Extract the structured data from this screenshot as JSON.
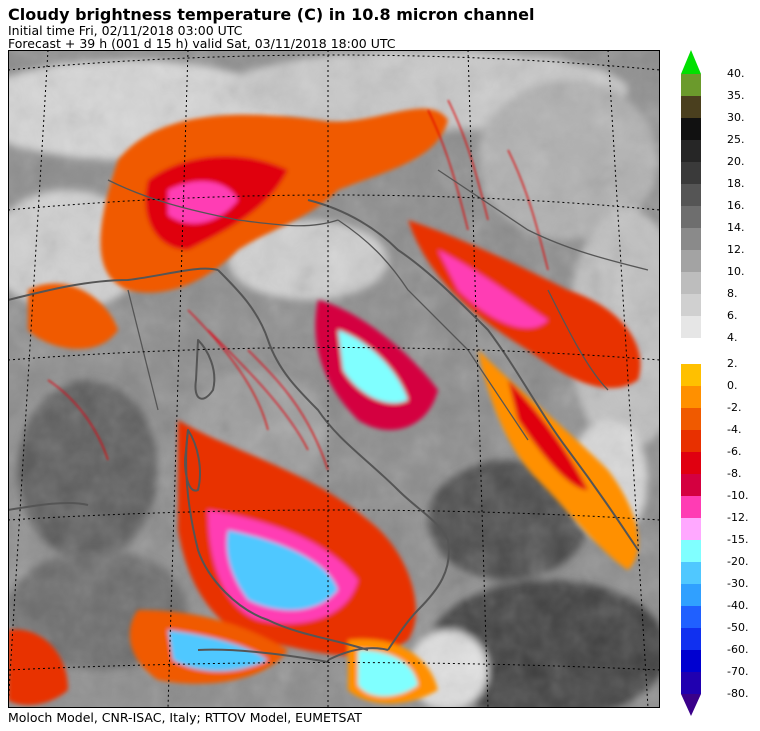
{
  "header": {
    "title": "Cloudy brightness temperature (C) in   10.8 micron channel",
    "initial_time": "Initial time  Fri, 02/11/2018  03:00 UTC",
    "forecast": "Forecast  +  39 h  (001 d 15 h)  valid Sat, 03/11/2018 18:00 UTC"
  },
  "footer": {
    "credits": "Moloch Model, CNR-ISAC, Italy; RTTOV Model, EUMETSAT"
  },
  "legend": {
    "warm_bins": [
      {
        "label": "40.",
        "color": "#00e000"
      },
      {
        "label": "35.",
        "color": "#6b9a2c"
      },
      {
        "label": "30.",
        "color": "#4a3f1e"
      },
      {
        "label": "25.",
        "color": "#111111"
      },
      {
        "label": "20.",
        "color": "#262626"
      },
      {
        "label": "18.",
        "color": "#3a3a3a"
      },
      {
        "label": "16.",
        "color": "#555555"
      },
      {
        "label": "14.",
        "color": "#6e6e6e"
      },
      {
        "label": "12.",
        "color": "#8a8a8a"
      },
      {
        "label": "10.",
        "color": "#a3a3a3"
      },
      {
        "label": "8.",
        "color": "#bdbdbd"
      },
      {
        "label": "6.",
        "color": "#d0d0d0"
      },
      {
        "label": "4.",
        "color": "#e6e6e6"
      }
    ],
    "cold_bins": [
      {
        "label": "2.",
        "color": "#ffc000"
      },
      {
        "label": "0.",
        "color": "#ff9000"
      },
      {
        "label": "-2.",
        "color": "#f05a00"
      },
      {
        "label": "-4.",
        "color": "#e83000"
      },
      {
        "label": "-6.",
        "color": "#e00010"
      },
      {
        "label": "-8.",
        "color": "#d40040"
      },
      {
        "label": "-10.",
        "color": "#ff3cb4"
      },
      {
        "label": "-12.",
        "color": "#ffa8ff"
      },
      {
        "label": "-15.",
        "color": "#80ffff"
      },
      {
        "label": "-20.",
        "color": "#50c8ff"
      },
      {
        "label": "-30.",
        "color": "#30a0ff"
      },
      {
        "label": "-40.",
        "color": "#2060ff"
      },
      {
        "label": "-50.",
        "color": "#1030f0"
      },
      {
        "label": "-60.",
        "color": "#0000d0"
      },
      {
        "label": "-70.",
        "color": "#2000b0"
      },
      {
        "label": "-80.",
        "color": "#3a008a"
      }
    ]
  }
}
